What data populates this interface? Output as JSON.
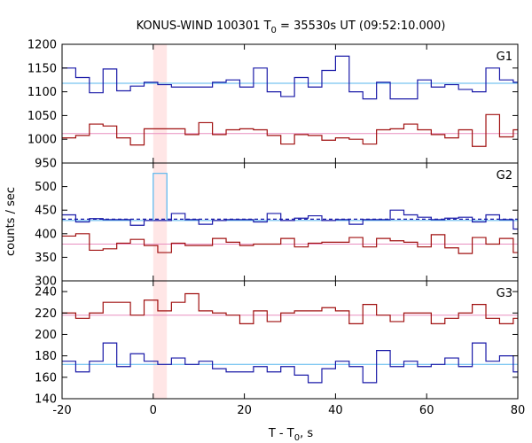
{
  "chart_data": {
    "type": "line",
    "title": {
      "prefix": "KONUS-WIND 100301 T",
      "sub": "0",
      "suffix": " = 35530s UT (09:52:10.000)"
    },
    "xlabel": {
      "prefix": "T - T",
      "sub": "0",
      "suffix": ", s"
    },
    "ylabel": "counts / sec",
    "x_range": [
      -20,
      80
    ],
    "x_ticks": [
      -20,
      0,
      20,
      40,
      60,
      80
    ],
    "highlight_band": {
      "x_start": 0,
      "x_end": 3,
      "color": "#ffe6e6"
    },
    "colors": {
      "blue_step": "#1a1aa8",
      "red_step": "#a01010",
      "blue_bg": "#55b5ee",
      "red_bg": "#e88fc0",
      "spike": "#55b5ee"
    },
    "bin_edges": [
      -20,
      -17,
      -14,
      -11,
      -8,
      -5,
      -2,
      1,
      4,
      7,
      10,
      13,
      16,
      19,
      22,
      25,
      28,
      31,
      34,
      37,
      40,
      43,
      46,
      49,
      52,
      55,
      58,
      61,
      64,
      67,
      70,
      73,
      76,
      79,
      80
    ],
    "panels": [
      {
        "label": "G1",
        "y_range": [
          950,
          1200
        ],
        "y_ticks": [
          950,
          1000,
          1050,
          1100,
          1150,
          1200
        ],
        "show_bottom_tick": true,
        "series": [
          {
            "role": "upper",
            "color": "blue",
            "bg": 1118,
            "values": [
              1150,
              1130,
              1098,
              1148,
              1102,
              1112,
              1120,
              1115,
              1110,
              1110,
              1110,
              1120,
              1125,
              1110,
              1150,
              1100,
              1090,
              1130,
              1110,
              1145,
              1175,
              1100,
              1085,
              1120,
              1085,
              1085,
              1125,
              1110,
              1115,
              1105,
              1100,
              1150,
              1125,
              1120
            ]
          },
          {
            "role": "lower",
            "color": "red",
            "bg": 1012,
            "values": [
              1003,
              1008,
              1032,
              1028,
              1003,
              988,
              1022,
              1022,
              1022,
              1010,
              1035,
              1010,
              1020,
              1022,
              1020,
              1008,
              990,
              1010,
              1008,
              998,
              1003,
              1000,
              990,
              1020,
              1022,
              1032,
              1020,
              1010,
              1003,
              1020,
              985,
              1052,
              1005,
              1020
            ]
          }
        ]
      },
      {
        "label": "G2",
        "y_range": [
          300,
          550
        ],
        "y_ticks": [
          300,
          350,
          400,
          450,
          500
        ],
        "show_bottom_tick": true,
        "series": [
          {
            "role": "upper",
            "color": "blue",
            "bg": 428,
            "dashed_bg": true,
            "values": [
              440,
              425,
              432,
              430,
              430,
              418,
              428,
              428,
              443,
              430,
              420,
              428,
              430,
              430,
              425,
              443,
              428,
              433,
              438,
              428,
              430,
              420,
              430,
              430,
              450,
              440,
              435,
              430,
              433,
              435,
              425,
              440,
              430,
              410
            ]
          },
          {
            "role": "lower",
            "color": "red",
            "bg": 378,
            "values": [
              395,
              400,
              365,
              368,
              380,
              388,
              375,
              360,
              380,
              375,
              375,
              390,
              382,
              375,
              378,
              378,
              390,
              372,
              380,
              382,
              382,
              392,
              372,
              390,
              385,
              382,
              372,
              398,
              370,
              358,
              392,
              378,
              390,
              360
            ]
          }
        ],
        "spike": {
          "x_start": 0,
          "x_end": 3,
          "value": 528
        }
      },
      {
        "label": "G3",
        "y_range": [
          140,
          250
        ],
        "y_ticks": [
          140,
          160,
          180,
          200,
          220,
          240
        ],
        "show_bottom_tick": true,
        "series": [
          {
            "role": "upper",
            "color": "red",
            "bg": 218,
            "values": [
              220,
              215,
              220,
              230,
              230,
              218,
              232,
              222,
              230,
              238,
              222,
              220,
              218,
              210,
              222,
              212,
              220,
              222,
              222,
              225,
              222,
              210,
              228,
              218,
              212,
              220,
              220,
              210,
              215,
              220,
              228,
              215,
              210,
              215
            ]
          },
          {
            "role": "lower",
            "color": "blue",
            "bg": 172,
            "values": [
              175,
              165,
              175,
              192,
              170,
              182,
              175,
              172,
              178,
              172,
              175,
              168,
              165,
              165,
              170,
              165,
              170,
              162,
              155,
              168,
              175,
              170,
              155,
              185,
              170,
              175,
              170,
              172,
              178,
              170,
              192,
              175,
              180,
              165
            ]
          }
        ]
      }
    ]
  }
}
